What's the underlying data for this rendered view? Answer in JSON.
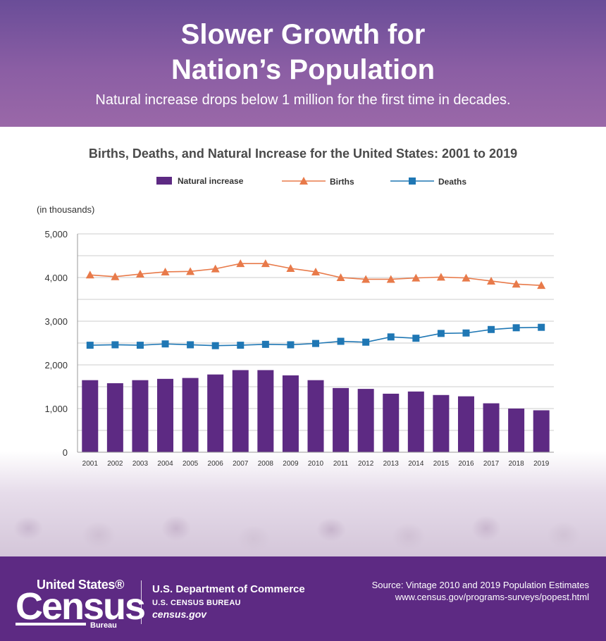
{
  "header": {
    "title_line1": "Slower Growth for",
    "title_line2": "Nation’s Population",
    "subtitle": "Natural increase drops below 1 million for the first time in decades."
  },
  "chart_data": {
    "type": "bar",
    "title": "Births, Deaths, and Natural Increase for the United States: 2001 to 2019",
    "ylabel": "(in thousands)",
    "ylim": [
      0,
      5000
    ],
    "yticks": [
      "0",
      "1,000",
      "2,000",
      "3,000",
      "4,000",
      "5,000"
    ],
    "ytick_values": [
      0,
      1000,
      2000,
      3000,
      4000,
      5000
    ],
    "grid": true,
    "legend_position": "top",
    "categories": [
      "2001",
      "2002",
      "2003",
      "2004",
      "2005",
      "2006",
      "2007",
      "2008",
      "2009",
      "2010",
      "2011",
      "2012",
      "2013",
      "2014",
      "2015",
      "2016",
      "2017",
      "2018",
      "2019"
    ],
    "series": [
      {
        "name": "Natural increase",
        "type": "bar",
        "color": "#5d2a83",
        "values": [
          1650,
          1580,
          1650,
          1680,
          1700,
          1780,
          1880,
          1880,
          1760,
          1650,
          1470,
          1450,
          1340,
          1390,
          1310,
          1280,
          1120,
          1000,
          960
        ]
      },
      {
        "name": "Births",
        "type": "line",
        "marker": "triangle",
        "color": "#e87a4a",
        "values": [
          4060,
          4020,
          4080,
          4130,
          4140,
          4200,
          4320,
          4320,
          4210,
          4130,
          4000,
          3960,
          3960,
          3990,
          4010,
          3990,
          3920,
          3850,
          3820
        ]
      },
      {
        "name": "Deaths",
        "type": "line",
        "marker": "square",
        "color": "#1f77b4",
        "values": [
          2450,
          2460,
          2450,
          2480,
          2460,
          2440,
          2450,
          2470,
          2460,
          2490,
          2540,
          2520,
          2640,
          2610,
          2720,
          2730,
          2810,
          2850,
          2860
        ]
      }
    ]
  },
  "footer": {
    "logo_top": "United States®",
    "logo_big": "Census",
    "logo_bureau": "Bureau",
    "dept": "U.S. Department of Commerce",
    "bureau": "U.S. CENSUS BUREAU",
    "site": "census.gov",
    "source_line1": "Source: Vintage 2010 and 2019 Population Estimates",
    "source_line2": "www.census.gov/programs-surveys/popest.html"
  }
}
